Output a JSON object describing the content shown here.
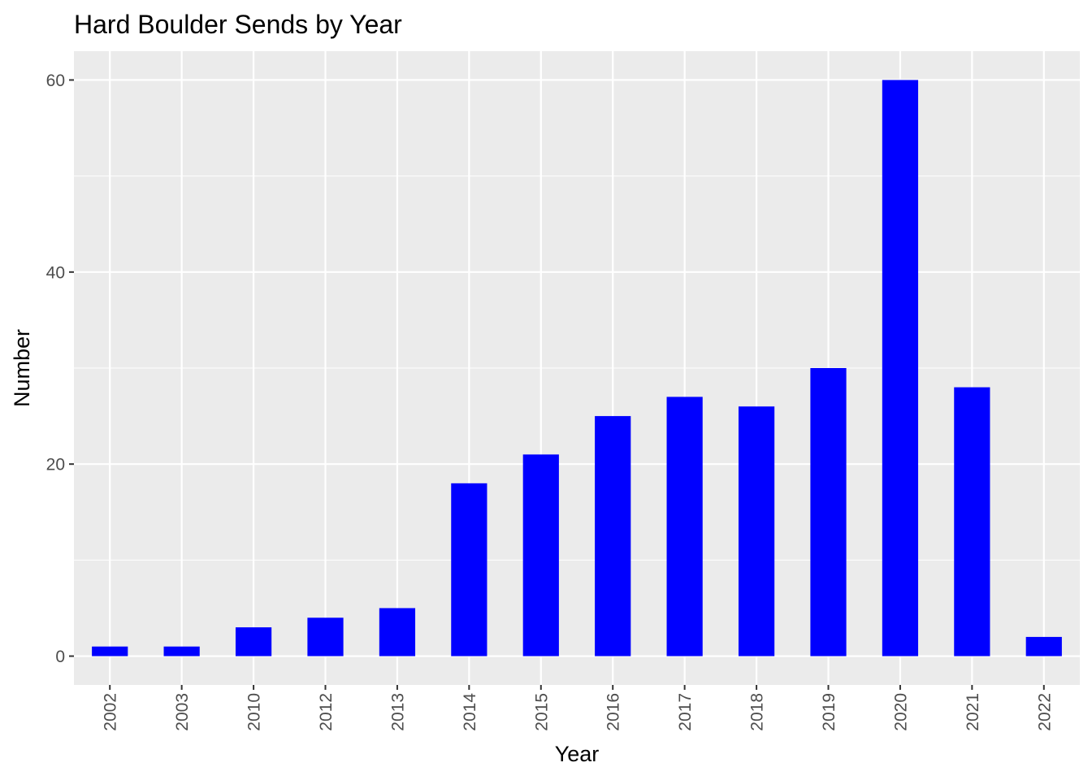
{
  "chart_data": {
    "type": "bar",
    "title": "Hard Boulder Sends by Year",
    "xlabel": "Year",
    "ylabel": "Number",
    "categories": [
      "2002",
      "2003",
      "2010",
      "2012",
      "2013",
      "2014",
      "2015",
      "2016",
      "2017",
      "2018",
      "2019",
      "2020",
      "2021",
      "2022"
    ],
    "values": [
      1,
      1,
      3,
      4,
      5,
      18,
      21,
      25,
      27,
      26,
      30,
      60,
      28,
      2
    ],
    "ylim": [
      -3,
      63
    ],
    "y_ticks": [
      0,
      20,
      40,
      60
    ],
    "y_minor_ticks": [
      10,
      30,
      50
    ],
    "grid": true,
    "legend": "none",
    "colors": {
      "bar": "#0000FF",
      "panel_background": "#EBEBEB",
      "grid": "#FFFFFF",
      "tick_label": "#4D4D4D",
      "tick_mark": "#333333",
      "text": "#000000"
    }
  }
}
